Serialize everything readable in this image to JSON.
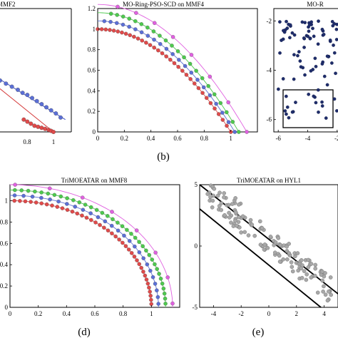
{
  "captions": {
    "b": "(b)",
    "d": "(d)",
    "e": "(e)"
  },
  "chart_data": [
    {
      "type": "scatter",
      "title": "MMF2",
      "xticks": [
        "0.8",
        "1"
      ],
      "xlim": [
        0.55,
        1.15
      ],
      "ylim": [
        0,
        1.2
      ],
      "series": [
        {
          "color": "#5b6fd6",
          "points": [
            [
              0.55,
              0.5
            ],
            [
              0.6,
              0.47
            ],
            [
              0.65,
              0.44
            ],
            [
              0.7,
              0.41
            ],
            [
              0.74,
              0.38
            ],
            [
              0.78,
              0.36
            ],
            [
              0.82,
              0.33
            ],
            [
              0.86,
              0.3
            ],
            [
              0.9,
              0.27
            ],
            [
              0.94,
              0.24
            ],
            [
              0.98,
              0.21
            ],
            [
              1.02,
              0.18
            ],
            [
              1.06,
              0.14
            ]
          ]
        },
        {
          "color": "#e04a4a",
          "points": [
            [
              0.75,
              0.12
            ],
            [
              0.78,
              0.1
            ],
            [
              0.81,
              0.08
            ],
            [
              0.84,
              0.06
            ],
            [
              0.87,
              0.05
            ],
            [
              0.9,
              0.04
            ],
            [
              0.93,
              0.03
            ],
            [
              0.96,
              0.02
            ],
            [
              0.98,
              0.01
            ],
            [
              1.0,
              0.0
            ]
          ]
        }
      ],
      "lines": [
        {
          "color": "#3b4fc4",
          "points": [
            [
              0.55,
              0.51
            ],
            [
              1.1,
              0.12
            ]
          ]
        },
        {
          "color": "#d43a3a",
          "points": [
            [
              0.55,
              0.42
            ],
            [
              1.0,
              0.0
            ]
          ]
        }
      ]
    },
    {
      "type": "scatter",
      "title": "MO-Ring-PSO-SCD on MMF4",
      "xticks": [
        "0",
        "0.2",
        "0.4",
        "0.6",
        "0.8",
        "1"
      ],
      "yticks": [
        "0",
        "0.2",
        "0.4",
        "0.6",
        "0.8",
        "1",
        "1.2"
      ],
      "xlim": [
        0,
        1.2
      ],
      "ylim": [
        0,
        1.2
      ],
      "series": [
        {
          "color": "#e04a4a",
          "offset": 0.0,
          "xmax": 1.0,
          "n": 34
        },
        {
          "color": "#5b6fd6",
          "offset": 0.08,
          "xmax": 1.03,
          "n": 22
        },
        {
          "color": "#4ec94e",
          "offset": 0.16,
          "xmax": 1.06,
          "n": 22
        },
        {
          "color": "#e060e0",
          "offset": 0.24,
          "xmax": 1.12,
          "n": 8
        }
      ]
    },
    {
      "type": "scatter",
      "title": "MO-R",
      "xticks": [
        "-6",
        "-4",
        "-2"
      ],
      "yticks": [
        "-2",
        "-4",
        "-6"
      ],
      "xlim": [
        -6.3,
        -1.7
      ],
      "ylim": [
        -6.5,
        -1.5
      ],
      "color": "#1f2d6b"
    },
    {
      "type": "scatter",
      "title": "TriMOEATAR on MMF8",
      "xticks": [
        "0",
        "0.2",
        "0.4",
        "0.6",
        "0.8",
        "1"
      ],
      "yticks": [
        "0",
        "0.2",
        "0.4",
        "0.6",
        "0.8",
        "1"
      ],
      "xlim": [
        0,
        1.2
      ],
      "ylim": [
        0,
        1.15
      ],
      "series": [
        {
          "color": "#e04a4a",
          "offset": 0.0,
          "n": 40
        },
        {
          "color": "#5b6fd6",
          "offset": 0.05,
          "n": 26
        },
        {
          "color": "#4ec94e",
          "offset": 0.1,
          "n": 36
        },
        {
          "color": "#e060e0",
          "offset": 0.15,
          "n": 8
        }
      ]
    },
    {
      "type": "scatter",
      "title": "TriMOEATAR on HYL1",
      "xticks": [
        "-4",
        "-2",
        "0",
        "2",
        "4"
      ],
      "yticks": [
        "5",
        "0",
        "-5"
      ],
      "xlim": [
        -5,
        5
      ],
      "ylim": [
        -5,
        5
      ],
      "color": "#a8a8a8"
    }
  ]
}
